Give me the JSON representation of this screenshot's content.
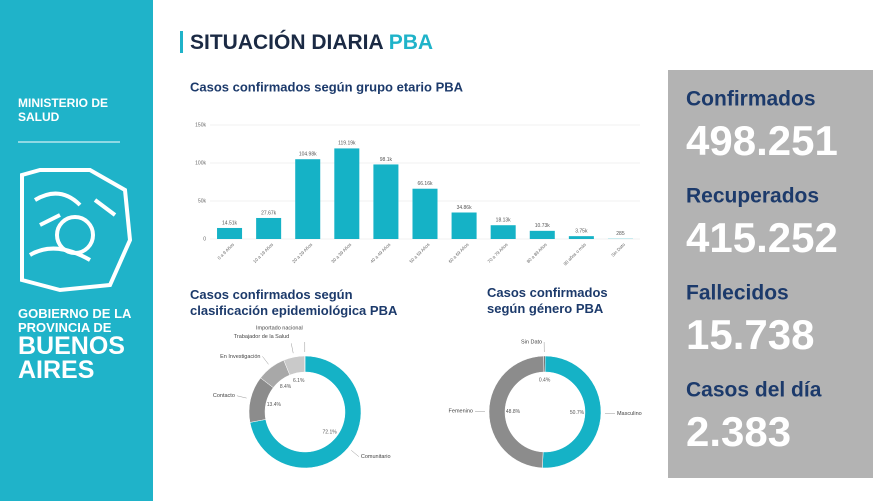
{
  "sidebar": {
    "ministry": "MINISTERIO DE SALUD",
    "gov": "GOBIERNO DE LA PROVINCIA DE",
    "province": "BUENOS AIRES"
  },
  "header": {
    "title": "SITUACIÓN DIARIA",
    "accent": "PBA"
  },
  "stats": [
    {
      "label": "Confirmados",
      "value": "498.251"
    },
    {
      "label": "Recuperados",
      "value": "415.252"
    },
    {
      "label": "Fallecidos",
      "value": "15.738"
    },
    {
      "label": "Casos del día",
      "value": "2.383"
    }
  ],
  "chart_data": [
    {
      "type": "bar",
      "title": "Casos confirmados según grupo etario PBA",
      "categories": [
        "0 a 9 Años",
        "10 a 19 Años",
        "20 a 29 Años",
        "30 a 39 Años",
        "40 a 49 Años",
        "50 a 59 Años",
        "60 a 69 Años",
        "70 a 79 Años",
        "80 a 89 Años",
        "90 años o más",
        "Sin Dato"
      ],
      "values": [
        14510,
        27670,
        104980,
        119190,
        98100,
        66160,
        34860,
        18130,
        10730,
        3750,
        285
      ],
      "value_labels": [
        "14.51k",
        "27.67k",
        "104.98k",
        "119.19k",
        "98.1k",
        "66.16k",
        "34.86k",
        "18.13k",
        "10.73k",
        "3.75k",
        "285"
      ],
      "color": "#15b2c6",
      "ylim": [
        0,
        150000
      ],
      "yticks": [
        0,
        {
          "value": 50000,
          "label": "50k"
        },
        {
          "value": 100000,
          "label": "100k"
        },
        {
          "value": 150000,
          "label": "150k"
        }
      ],
      "grid": true
    },
    {
      "type": "donut",
      "title": "Casos confirmados según clasificación epidemiológica PBA",
      "categories": [
        "Comunitario",
        "Contacto",
        "En Investigación",
        "Trabajador de la Salud",
        "Importado nacional"
      ],
      "values": [
        72.1,
        13.4,
        8.4,
        6.1,
        0.1
      ],
      "value_labels": [
        "72.1%",
        "13.4%",
        "8.4%",
        "6.1%",
        null
      ],
      "colors": [
        "#15b2c6",
        "#8c8c8c",
        "#a8a8a8",
        "#c9c9c9",
        "#5a5a5a"
      ]
    },
    {
      "type": "donut",
      "title": "Casos confirmados según género PBA",
      "categories": [
        "Masculino",
        "Femenino",
        "Sin Dato"
      ],
      "values": [
        50.7,
        48.8,
        0.4
      ],
      "value_labels": [
        "50.7%",
        "48.8%",
        "0.4%"
      ],
      "colors": [
        "#15b2c6",
        "#8c8c8c",
        "#4a4a4a"
      ]
    }
  ]
}
